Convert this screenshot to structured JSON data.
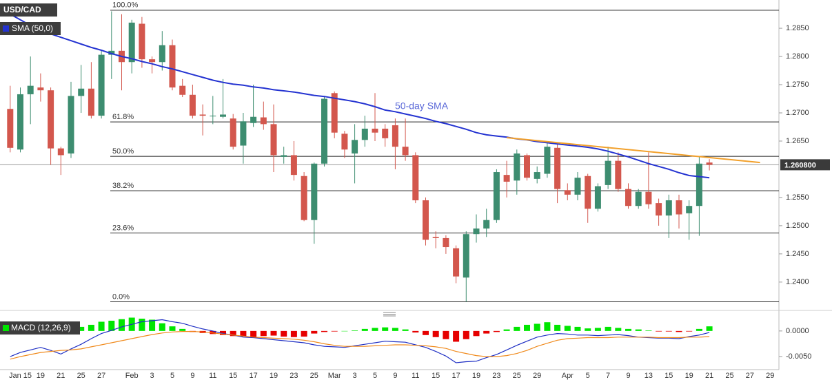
{
  "chart_data": [
    {
      "type": "candlestick",
      "title": "USD/CAD",
      "categories": [
        null,
        "Jan 15",
        null,
        "19",
        null,
        "21",
        null,
        "25",
        null,
        "27",
        null,
        null,
        "Feb",
        null,
        "3",
        null,
        "5",
        null,
        "9",
        null,
        "11",
        null,
        "15",
        null,
        "17",
        null,
        "19",
        null,
        "23",
        null,
        "25",
        null,
        "Mar",
        null,
        "3",
        null,
        "5",
        null,
        "9",
        null,
        "11",
        null,
        "15",
        null,
        "17",
        null,
        "19",
        null,
        "23",
        null,
        "25",
        null,
        "29",
        null,
        null,
        "Apr",
        null,
        "5",
        null,
        "7",
        null,
        "9",
        null,
        "13",
        null,
        "15",
        null,
        "19",
        null,
        "21",
        null,
        "25",
        null,
        "27",
        null,
        "29"
      ],
      "open": [
        1.2707,
        1.2635,
        1.2733,
        1.2745,
        1.274,
        1.2637,
        1.2628,
        1.273,
        1.2743,
        1.2695,
        1.2803,
        1.281,
        1.279,
        1.2858,
        1.2795,
        1.279,
        1.282,
        1.2748,
        1.2732,
        1.2697,
        1.2695,
        1.2693,
        1.269,
        1.2642,
        1.2682,
        1.2692,
        1.268,
        1.2622,
        1.2625,
        1.2588,
        1.251,
        1.261,
        1.2735,
        1.2663,
        1.2628,
        1.2652,
        1.2672,
        1.2672,
        1.2678,
        1.264,
        1.2625,
        1.2545,
        1.248,
        1.2478,
        1.246,
        1.2408,
        1.2485,
        1.2495,
        1.251,
        1.259,
        1.258,
        1.2625,
        1.2583,
        1.2592,
        1.2638,
        1.2563,
        1.2555,
        1.2588,
        1.253,
        1.2572,
        1.2615,
        1.2565,
        1.2535,
        1.256,
        1.254,
        1.2518,
        1.2545,
        1.2522,
        1.2535,
        1.2612,
        null,
        null,
        null,
        null,
        null,
        null
      ],
      "high": [
        1.2748,
        1.2745,
        1.28,
        1.277,
        1.2745,
        1.264,
        1.2755,
        1.2785,
        1.279,
        1.281,
        1.288,
        1.2875,
        1.2865,
        1.287,
        1.28,
        1.2845,
        1.283,
        1.276,
        1.275,
        1.2715,
        1.273,
        1.276,
        1.2698,
        1.27,
        1.275,
        1.272,
        1.2715,
        1.264,
        1.265,
        1.2595,
        1.2612,
        1.273,
        1.2738,
        1.2668,
        1.268,
        1.2695,
        1.2735,
        1.268,
        1.269,
        1.269,
        1.263,
        1.255,
        1.249,
        1.2483,
        1.2465,
        1.249,
        1.252,
        1.253,
        1.26,
        1.2615,
        1.2635,
        1.2628,
        1.2605,
        1.2648,
        1.2645,
        1.2575,
        1.2595,
        1.2592,
        1.2575,
        1.264,
        1.263,
        1.2575,
        1.2565,
        1.263,
        1.2548,
        1.2555,
        1.2555,
        1.2545,
        1.2622,
        1.2618,
        null,
        null,
        null,
        null,
        null,
        null
      ],
      "low": [
        1.263,
        1.263,
        1.268,
        1.272,
        1.2608,
        1.259,
        1.262,
        1.27,
        1.269,
        1.269,
        1.276,
        1.274,
        1.277,
        1.278,
        1.277,
        1.2775,
        1.274,
        1.2728,
        1.269,
        1.266,
        1.268,
        1.269,
        1.2635,
        1.261,
        1.2675,
        1.267,
        1.2595,
        1.261,
        1.258,
        1.2508,
        1.2468,
        1.2605,
        1.2655,
        1.262,
        1.2575,
        1.264,
        1.265,
        1.264,
        1.26,
        1.2615,
        1.254,
        1.2465,
        1.246,
        1.245,
        1.2398,
        1.2365,
        1.247,
        1.248,
        1.2505,
        1.255,
        1.2555,
        1.258,
        1.2575,
        1.2585,
        1.254,
        1.2545,
        1.2545,
        1.2505,
        1.2525,
        1.2565,
        1.256,
        1.253,
        1.253,
        1.253,
        1.25,
        1.2478,
        1.2495,
        1.2475,
        1.2482,
        1.2598,
        null,
        null,
        null,
        null,
        null,
        null
      ],
      "close": [
        1.2638,
        1.2733,
        1.2748,
        1.274,
        1.2637,
        1.2625,
        1.273,
        1.2743,
        1.2695,
        1.2803,
        1.281,
        1.279,
        1.286,
        1.2795,
        1.279,
        1.282,
        1.2745,
        1.2732,
        1.2695,
        1.2695,
        1.2695,
        1.2697,
        1.264,
        1.2685,
        1.2693,
        1.268,
        1.2625,
        1.2625,
        1.259,
        1.251,
        1.261,
        1.2725,
        1.2665,
        1.2635,
        1.2652,
        1.2672,
        1.2665,
        1.2655,
        1.264,
        1.2625,
        1.2545,
        1.2475,
        1.2478,
        1.2462,
        1.241,
        1.2485,
        1.2495,
        1.251,
        1.2595,
        1.2578,
        1.2628,
        1.2585,
        1.2595,
        1.264,
        1.2565,
        1.2555,
        1.2585,
        1.253,
        1.257,
        1.2615,
        1.2565,
        1.2535,
        1.256,
        1.2538,
        1.2518,
        1.2545,
        1.252,
        1.2535,
        1.261,
        1.2608,
        null,
        null,
        null,
        null,
        null,
        null
      ],
      "up_color": "#3d8d70",
      "down_color": "#d3574d",
      "ylim": [
        1.2351,
        1.2894
      ],
      "yticks": [
        {
          "value": 1.285,
          "label": "1.2850"
        },
        {
          "value": 1.28,
          "label": "1.2800"
        },
        {
          "value": 1.275,
          "label": "1.2750"
        },
        {
          "value": 1.27,
          "label": "1.2700"
        },
        {
          "value": 1.265,
          "label": "1.2650"
        },
        {
          "value": 1.255,
          "label": "1.2550"
        },
        {
          "value": 1.25,
          "label": "1.2500"
        },
        {
          "value": 1.245,
          "label": "1.2450"
        },
        {
          "value": 1.24,
          "label": "1.2400"
        }
      ],
      "sma": {
        "name": "SMA (50,0)",
        "color": "#2433d1",
        "values": [
          1.2875,
          1.2865,
          1.2855,
          1.2846,
          1.284,
          1.2834,
          1.2828,
          1.2822,
          1.2816,
          1.2811,
          1.2805,
          1.28,
          1.2796,
          1.2791,
          1.2787,
          1.2782,
          1.2778,
          1.2773,
          1.2768,
          1.2763,
          1.2758,
          1.2754,
          1.2751,
          1.2749,
          1.2746,
          1.2744,
          1.2741,
          1.2739,
          1.2737,
          1.2734,
          1.2731,
          1.2729,
          1.2726,
          1.2723,
          1.272,
          1.2716,
          1.2711,
          1.2705,
          1.2702,
          1.2698,
          1.2694,
          1.269,
          1.2685,
          1.2681,
          1.2676,
          1.2671,
          1.2665,
          1.2661,
          1.2659,
          1.2657,
          1.2654,
          1.2652,
          1.2649,
          1.2647,
          1.2645,
          1.2643,
          1.2641,
          1.2639,
          1.2636,
          1.2632,
          1.2627,
          1.2622,
          1.2616,
          1.261,
          1.2605,
          1.26,
          1.2594,
          1.2589,
          1.2587,
          1.2585,
          null,
          null,
          null,
          null,
          null,
          null
        ]
      },
      "annotation": "50-day SMA",
      "annotation_color": "#5a68d8",
      "trendline": {
        "color": "#f2a02a",
        "x": [
          49,
          74
        ],
        "values": [
          1.2656,
          1.2612
        ]
      },
      "level_color": "#222",
      "levels": [
        {
          "label": "100.0%",
          "value": 1.2882
        },
        {
          "label": "61.8%",
          "value": 1.2684
        },
        {
          "label": "50.0%",
          "value": 1.2623
        },
        {
          "label": "38.2%",
          "value": 1.2562
        },
        {
          "label": "23.6%",
          "value": 1.2487
        },
        {
          "label": "0.0%",
          "value": 1.2365
        }
      ],
      "last_price": {
        "value": 1.2608,
        "label": "1.260800"
      }
    },
    {
      "type": "macd",
      "title": "MACD (12,26,9)",
      "histogram": {
        "up_color": "#00e600",
        "down_color": "#e60000",
        "values": [
          null,
          null,
          null,
          null,
          null,
          null,
          0.0005,
          0.0008,
          0.0012,
          0.0018,
          0.002,
          0.0023,
          0.0026,
          0.0024,
          0.0022,
          0.0015,
          0.0009,
          0.0004,
          -0.0002,
          -0.0004,
          -0.0006,
          -0.0008,
          -0.001,
          -0.0011,
          -0.0012,
          -0.001,
          -0.0009,
          -0.0011,
          -0.0012,
          -0.0011,
          -0.0005,
          -0.0002,
          -0.0001,
          0,
          0.0001,
          0.0004,
          0.0006,
          0.0007,
          0.0006,
          0.0003,
          -0.0003,
          -0.0008,
          -0.0012,
          -0.0016,
          -0.0021,
          -0.0016,
          -0.001,
          -0.0005,
          -0.0002,
          0.0003,
          0.0008,
          0.0012,
          0.0014,
          0.0017,
          0.0012,
          0.001,
          0.0008,
          0.0005,
          0.0006,
          0.0008,
          0.0006,
          0.0004,
          0.0003,
          0.0001,
          -0.0001,
          -0.0001,
          -0.0002,
          -0.0001,
          0.0004,
          0.0009,
          null,
          null,
          null,
          null,
          null,
          null
        ]
      },
      "macd_line": {
        "color": "#1f2fc4",
        "values": [
          -0.005,
          -0.0042,
          -0.0037,
          -0.0032,
          -0.0038,
          -0.0045,
          -0.0035,
          -0.0026,
          -0.0015,
          -0.0005,
          0.0001,
          0.0008,
          0.0013,
          0.0018,
          0.002,
          0.0022,
          0.0018,
          0.0015,
          0.0009,
          0.0004,
          0,
          -0.0005,
          -0.0008,
          -0.0012,
          -0.0013,
          -0.0015,
          -0.0017,
          -0.0019,
          -0.0021,
          -0.0023,
          -0.0027,
          -0.003,
          -0.0031,
          -0.0032,
          -0.0029,
          -0.0026,
          -0.0023,
          -0.002,
          -0.0021,
          -0.0022,
          -0.0027,
          -0.0032,
          -0.004,
          -0.0049,
          -0.0062,
          -0.006,
          -0.0059,
          -0.0052,
          -0.0046,
          -0.0037,
          -0.0028,
          -0.002,
          -0.0012,
          -0.0008,
          -0.0005,
          -0.0006,
          -0.0008,
          -0.0008,
          -0.0009,
          -0.0008,
          -0.0007,
          -0.0009,
          -0.0012,
          -0.0013,
          -0.0014,
          -0.0014,
          -0.0015,
          -0.0011,
          -0.0008,
          -0.0003,
          null,
          null,
          null,
          null,
          null,
          null
        ]
      },
      "signal_line": {
        "color": "#f08a1c",
        "values": [
          -0.0055,
          -0.005,
          -0.0046,
          -0.0042,
          -0.004,
          -0.0038,
          -0.0037,
          -0.0035,
          -0.0031,
          -0.0027,
          -0.0023,
          -0.0019,
          -0.0015,
          -0.0011,
          -0.0007,
          -0.0004,
          -0.0002,
          -0.0001,
          -0.0001,
          -0.0002,
          -0.0004,
          -0.0006,
          -0.0008,
          -0.001,
          -0.0012,
          -0.0013,
          -0.0014,
          -0.0015,
          -0.0016,
          -0.0018,
          -0.0021,
          -0.0025,
          -0.0028,
          -0.003,
          -0.003,
          -0.003,
          -0.0029,
          -0.0028,
          -0.0027,
          -0.0027,
          -0.0028,
          -0.0029,
          -0.0031,
          -0.0034,
          -0.004,
          -0.0044,
          -0.0048,
          -0.005,
          -0.005,
          -0.0048,
          -0.0044,
          -0.0038,
          -0.003,
          -0.0024,
          -0.0018,
          -0.0015,
          -0.0014,
          -0.0013,
          -0.0013,
          -0.0013,
          -0.0012,
          -0.0012,
          -0.0012,
          -0.0012,
          -0.0013,
          -0.0013,
          -0.0013,
          -0.0012,
          -0.0012,
          -0.0011,
          null,
          null,
          null,
          null,
          null,
          null
        ]
      },
      "ylim": [
        -0.0066,
        0.0028
      ],
      "yticks": [
        {
          "value": 0,
          "label": "0.0000"
        },
        {
          "value": -0.005,
          "label": "-0.0050"
        }
      ]
    }
  ]
}
